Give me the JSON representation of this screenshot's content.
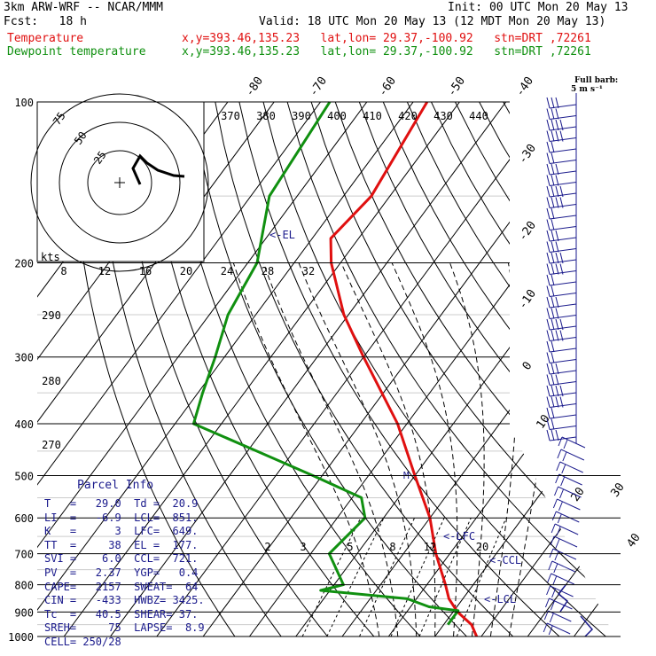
{
  "header": {
    "model": "3km ARW-WRF -- NCAR/MMM",
    "init": "Init: 00 UTC Mon 20 May 13",
    "fcst": "Fcst:   18 h",
    "valid": "Valid: 18 UTC Mon 20 May 13 (12 MDT Mon 20 May 13)",
    "temperature_label": "Temperature",
    "dewpoint_label": "Dewpoint temperature",
    "location": "x,y=393.46,135.23   lat,lon= 29.37,-100.92   stn=DRT ,72261"
  },
  "barb_legend": {
    "title": "Full barb:",
    "units": "5 m s⁻¹"
  },
  "hodograph": {
    "ring_labels": [
      "25",
      "50",
      "75"
    ],
    "kts_label": "kts"
  },
  "parcel_info": {
    "title": "Parcel Info",
    "rows": [
      "T   =   29.0  Td =  20.9",
      "LI  =   -6.9  LCL=  851.",
      "K   =      3  LFC=  649.",
      "TT  =     38  EL =  177.",
      "SVI =    6.0  CCL=  721.",
      "PV  =   2.37  YGP=   0.4",
      "CAPE=   2157  SWEAT=  64",
      "CIN =   -433  HWBZ= 3425.",
      "Tc  =   40.5  SHEAR= 37.",
      "SREH=     75  LAPSE=  8.9",
      "CELL= 250/28"
    ]
  },
  "colors": {
    "temperature": "#e01010",
    "dewpoint": "#109010",
    "barbs": "#1a1a8c",
    "grid": "#000000"
  },
  "chart_data": {
    "type": "line",
    "pressure_levels": [
      100,
      200,
      300,
      400,
      500,
      600,
      700,
      800,
      900,
      1000
    ],
    "isotherm_labels": [
      "-80",
      "-70",
      "-60",
      "-50",
      "-40",
      "-30",
      "-20",
      "-10",
      "0",
      "10",
      "20",
      "30",
      "40"
    ],
    "theta_labels": [
      "370",
      "380",
      "390",
      "400",
      "410",
      "420",
      "430",
      "440"
    ],
    "mixing_ratio_labels": [
      "8",
      "12",
      "16",
      "20",
      "24",
      "28",
      "32"
    ],
    "mixing_ratio_lower_labels": [
      "2",
      "3",
      "5",
      "8",
      "12",
      "20"
    ],
    "dry_adiabat_labels": [
      "290",
      "280",
      "270"
    ],
    "annotations": [
      "<-EL",
      "<-LFC",
      "<-CCL",
      "<-LCL"
    ],
    "series": [
      {
        "name": "Temperature",
        "points": [
          [
            100,
            -67
          ],
          [
            150,
            -64
          ],
          [
            180,
            -66
          ],
          [
            200,
            -62
          ],
          [
            250,
            -51
          ],
          [
            300,
            -40
          ],
          [
            400,
            -22
          ],
          [
            500,
            -10
          ],
          [
            600,
            0
          ],
          [
            700,
            7
          ],
          [
            800,
            14
          ],
          [
            850,
            17
          ],
          [
            900,
            21
          ],
          [
            950,
            26
          ],
          [
            1000,
            29
          ]
        ]
      },
      {
        "name": "Dewpoint temperature",
        "points": [
          [
            100,
            -88
          ],
          [
            150,
            -86
          ],
          [
            200,
            -78
          ],
          [
            250,
            -76
          ],
          [
            300,
            -72
          ],
          [
            350,
            -69
          ],
          [
            400,
            -66
          ],
          [
            450,
            -48
          ],
          [
            500,
            -32
          ],
          [
            550,
            -18
          ],
          [
            600,
            -14
          ],
          [
            700,
            -16
          ],
          [
            800,
            -8
          ],
          [
            820,
            -12
          ],
          [
            850,
            8
          ],
          [
            880,
            14
          ],
          [
            895,
            20.9
          ],
          [
            950,
            20.9
          ]
        ]
      }
    ]
  }
}
